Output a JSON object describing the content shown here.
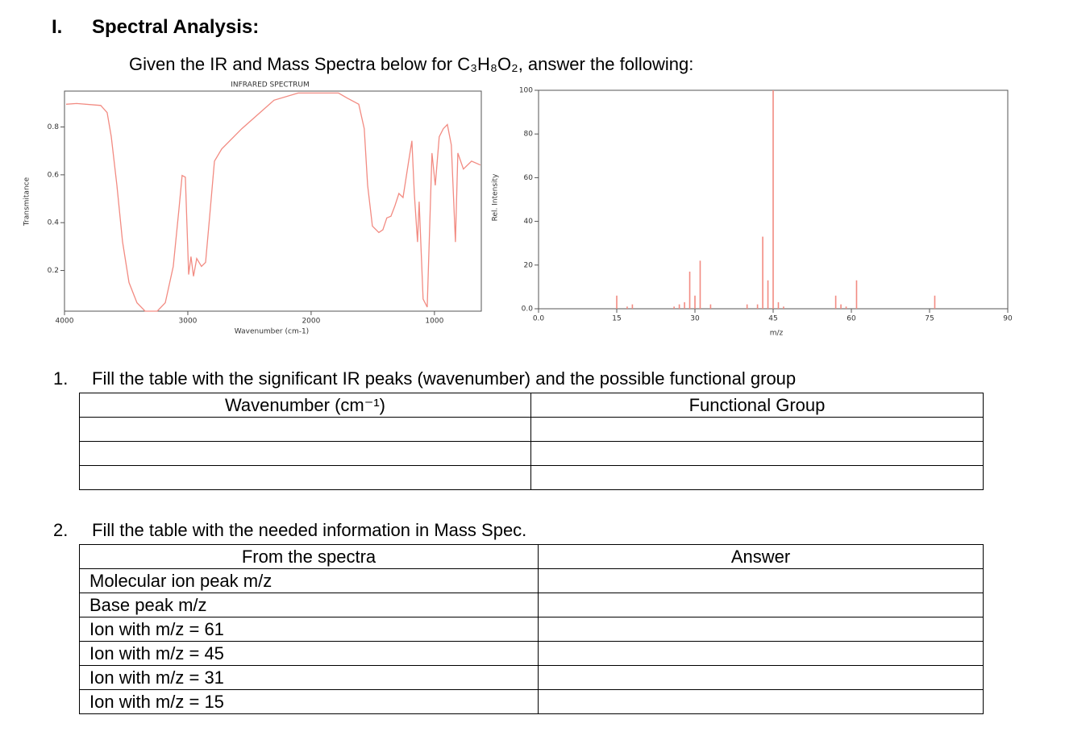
{
  "section": {
    "number": "I.",
    "title": "Spectral Analysis:",
    "intro": "Given the IR and Mass Spectra below for C₃H₈O₂, answer the following:"
  },
  "chart_data": [
    {
      "type": "line",
      "title": "INFRARED SPECTRUM",
      "x_label": "Wavenumber (cm-1)",
      "y_label": "Transmitance",
      "color": "#f28b82",
      "xlim": [
        4000,
        620
      ],
      "ylim": [
        0.03,
        0.95
      ],
      "xticks": [
        4000,
        3000,
        2000,
        1000
      ],
      "yticks": [
        0.2,
        0.4,
        0.6,
        0.8
      ],
      "x": [
        3987,
        3902,
        3706,
        3654,
        3621,
        3575,
        3529,
        3477,
        3412,
        3346,
        3248,
        3183,
        3118,
        3072,
        3046,
        3020,
        2993,
        2974,
        2954,
        2928,
        2889,
        2856,
        2824,
        2784,
        2725,
        2562,
        2301,
        2105,
        1778,
        1712,
        1614,
        1569,
        1542,
        1503,
        1451,
        1418,
        1386,
        1353,
        1320,
        1288,
        1255,
        1209,
        1183,
        1163,
        1137,
        1124,
        1092,
        1059,
        1020,
        993,
        961,
        928,
        895,
        863,
        830,
        810,
        765,
        699,
        627
      ],
      "values": [
        0.895,
        0.898,
        0.89,
        0.86,
        0.76,
        0.556,
        0.32,
        0.15,
        0.065,
        0.03,
        0.03,
        0.065,
        0.217,
        0.454,
        0.597,
        0.59,
        0.183,
        0.258,
        0.176,
        0.25,
        0.217,
        0.234,
        0.42,
        0.657,
        0.708,
        0.793,
        0.912,
        0.942,
        0.942,
        0.922,
        0.895,
        0.793,
        0.556,
        0.386,
        0.359,
        0.37,
        0.42,
        0.427,
        0.471,
        0.522,
        0.505,
        0.657,
        0.742,
        0.522,
        0.319,
        0.488,
        0.081,
        0.047,
        0.691,
        0.556,
        0.759,
        0.793,
        0.81,
        0.725,
        0.319,
        0.691,
        0.624,
        0.657,
        0.641
      ]
    },
    {
      "type": "bar",
      "x_label": "m/z",
      "y_label": "Rel. Intensity",
      "color": "#f28b82",
      "xlim": [
        0,
        90
      ],
      "ylim": [
        0,
        100
      ],
      "xticks": [
        {
          "value": 0,
          "label": "0.0"
        },
        15,
        30,
        45,
        60,
        75,
        90
      ],
      "yticks": [
        {
          "value": 0,
          "label": "0.0"
        },
        20,
        40,
        60,
        80,
        100
      ],
      "x": [
        15,
        17,
        18,
        26,
        27,
        28,
        29,
        30,
        31,
        33,
        40,
        42,
        43,
        44,
        45,
        46,
        47,
        57,
        58,
        59,
        61,
        76
      ],
      "values": [
        6,
        1,
        2,
        1,
        2,
        3,
        17,
        6,
        22,
        2,
        2,
        2,
        33,
        13,
        100,
        3,
        1,
        6,
        2,
        1,
        13,
        6
      ]
    }
  ],
  "questions": [
    {
      "number": "1.",
      "text": "Fill the table with the significant IR peaks (wavenumber) and the possible functional group",
      "table": {
        "header": [
          "Wavenumber (cm⁻¹)",
          "Functional Group"
        ]
      }
    },
    {
      "number": "2.",
      "text": "Fill the table with the needed information in Mass Spec.",
      "table": {
        "header": [
          "From the spectra",
          "Answer"
        ],
        "rows": [
          "Molecular ion peak m/z",
          "Base peak m/z",
          "Ion with m/z = 61",
          "Ion with m/z = 45",
          "Ion with m/z = 31",
          "Ion with m/z = 15"
        ]
      }
    }
  ]
}
